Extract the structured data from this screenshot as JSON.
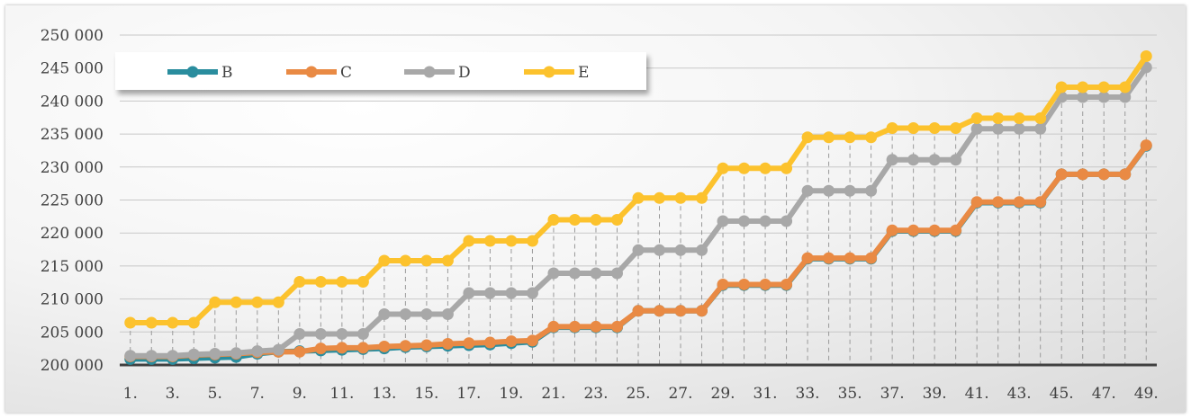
{
  "chart_data": {
    "type": "line",
    "x_tick_labels": [
      "1.",
      "3.",
      "5.",
      "7.",
      "9.",
      "11.",
      "13.",
      "15.",
      "17.",
      "19.",
      "21.",
      "23.",
      "25.",
      "27.",
      "29.",
      "31.",
      "33.",
      "35.",
      "37.",
      "39.",
      "41.",
      "43.",
      "45.",
      "47.",
      "49."
    ],
    "x": [
      1,
      2,
      3,
      4,
      5,
      6,
      7,
      8,
      9,
      10,
      11,
      12,
      13,
      14,
      15,
      16,
      17,
      18,
      19,
      20,
      21,
      22,
      23,
      24,
      25,
      26,
      27,
      28,
      29,
      30,
      31,
      32,
      33,
      34,
      35,
      36,
      37,
      38,
      39,
      40,
      41,
      42,
      43,
      44,
      45,
      46,
      47,
      48,
      49
    ],
    "y_tick_labels": [
      "200 000",
      "205 000",
      "210 000",
      "215 000",
      "220 000",
      "225 000",
      "230 000",
      "235 000",
      "240 000",
      "245 000",
      "250 000"
    ],
    "ylim": [
      200000,
      250000
    ],
    "grid": true,
    "drop_lines": true,
    "legend_position": "top-left",
    "series": [
      {
        "name": "B",
        "color": "#2a8d9e",
        "values": [
          200900,
          200900,
          200900,
          201000,
          201100,
          201200,
          201700,
          202000,
          202100,
          202200,
          202300,
          202400,
          202500,
          202700,
          202800,
          202900,
          203000,
          203100,
          203300,
          203500,
          205700,
          205700,
          205700,
          205700,
          208200,
          208200,
          208200,
          208200,
          212100,
          212100,
          212100,
          212100,
          216100,
          216100,
          216100,
          216100,
          220300,
          220300,
          220300,
          220300,
          224600,
          224600,
          224600,
          224600,
          228900,
          228900,
          228900,
          228900,
          233200
        ]
      },
      {
        "name": "C",
        "color": "#e98a44",
        "values": [
          201300,
          201300,
          201300,
          201500,
          201600,
          201700,
          201900,
          202000,
          202000,
          202500,
          202600,
          202600,
          202800,
          202900,
          203000,
          203200,
          203300,
          203400,
          203600,
          203700,
          205800,
          205800,
          205800,
          205800,
          208200,
          208200,
          208200,
          208200,
          212200,
          212200,
          212200,
          212200,
          216200,
          216200,
          216200,
          216200,
          220400,
          220400,
          220400,
          220400,
          224700,
          224700,
          224700,
          224700,
          228900,
          228900,
          228900,
          228900,
          233300
        ]
      },
      {
        "name": "D",
        "color": "#a8a8a8",
        "values": [
          201400,
          201400,
          201400,
          201600,
          201700,
          201800,
          202100,
          202300,
          204700,
          204700,
          204700,
          204700,
          207700,
          207700,
          207700,
          207700,
          210900,
          210900,
          210900,
          210900,
          213900,
          213900,
          213900,
          213900,
          217400,
          217400,
          217400,
          217400,
          221800,
          221800,
          221800,
          221800,
          226400,
          226400,
          226400,
          226400,
          231100,
          231100,
          231100,
          231100,
          235800,
          235800,
          235800,
          235800,
          240600,
          240600,
          240600,
          240600,
          245100
        ]
      },
      {
        "name": "E",
        "color": "#fcc22d",
        "values": [
          206400,
          206400,
          206400,
          206400,
          209500,
          209500,
          209500,
          209500,
          212600,
          212600,
          212600,
          212600,
          215800,
          215800,
          215800,
          215800,
          218800,
          218800,
          218800,
          218800,
          222000,
          222000,
          222000,
          222000,
          225300,
          225300,
          225300,
          225300,
          229800,
          229800,
          229800,
          229800,
          234500,
          234500,
          234500,
          234500,
          235900,
          235900,
          235900,
          235900,
          237400,
          237400,
          237400,
          237400,
          242100,
          242100,
          242100,
          242100,
          246800
        ]
      }
    ]
  }
}
